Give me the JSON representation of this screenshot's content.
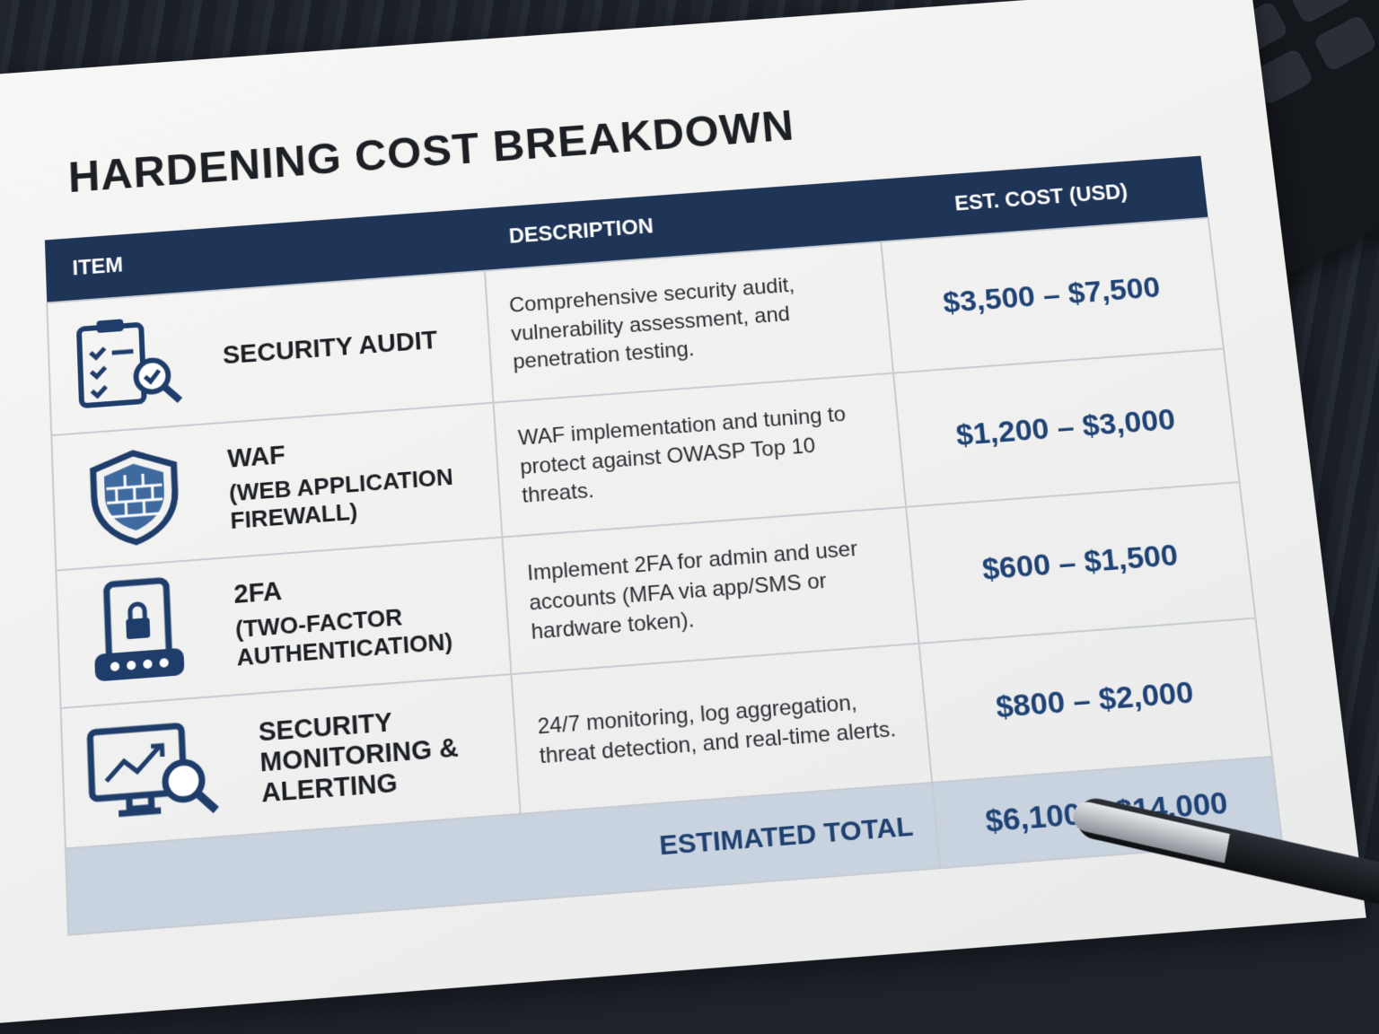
{
  "document": {
    "title": "HARDENING COST BREAKDOWN",
    "table": {
      "headers": [
        "ITEM",
        "DESCRIPTION",
        "EST. COST (USD)"
      ],
      "rows": [
        {
          "name": "SECURITY AUDIT",
          "subtitle": null,
          "description": "Comprehensive security audit, vulnerability assessment, and penetration testing.",
          "cost": "$3,500 – $7,500"
        },
        {
          "name": "WAF",
          "subtitle": "(WEB APPLICATION FIREWALL)",
          "description": "WAF implementation and tuning to protect against OWASP Top 10 threats.",
          "cost": "$1,200 – $3,000"
        },
        {
          "name": "2FA",
          "subtitle": "(TWO-FACTOR AUTHENTICATION)",
          "description": "Implement 2FA for admin and user accounts (MFA via app/SMS or hardware token).",
          "cost": "$600 – $1,500"
        },
        {
          "name": "SECURITY MONITORING & ALERTING",
          "subtitle": null,
          "description": "24/7 monitoring, log aggregation, threat detection, and real-time alerts.",
          "cost": "$800 – $2,000"
        }
      ],
      "total": {
        "label": "ESTIMATED TOTAL",
        "value": "$6,100 – $14,000"
      }
    }
  }
}
